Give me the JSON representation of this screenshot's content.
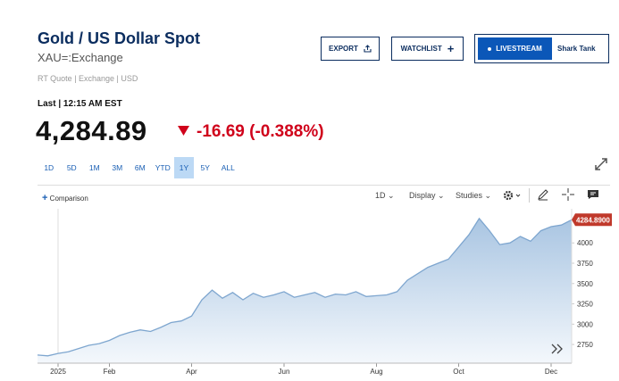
{
  "header": {
    "title": "Gold / US Dollar Spot",
    "symbol": "XAU=:Exchange",
    "meta": "RT Quote | Exchange | USD"
  },
  "buttons": {
    "export": "EXPORT",
    "watchlist": "WATCHLIST",
    "livestream": "LIVESTREAM",
    "show": "Shark Tank"
  },
  "quote": {
    "last_label": "Last | 12:15 AM EST",
    "price": "4,284.89",
    "change": "-16.69 (-0.388%)"
  },
  "ranges": [
    "1D",
    "5D",
    "1M",
    "3M",
    "6M",
    "YTD",
    "1Y",
    "5Y",
    "ALL"
  ],
  "selected_range": "1Y",
  "toolbar": {
    "comparison": "Comparison",
    "interval": "1D",
    "display": "Display",
    "studies": "Studies"
  },
  "chart_data": {
    "type": "area",
    "categories": [
      null,
      null,
      "2025",
      null,
      null,
      null,
      null,
      "Feb",
      null,
      null,
      null,
      null,
      null,
      null,
      null,
      "Apr",
      null,
      null,
      null,
      null,
      null,
      null,
      null,
      null,
      "Jun",
      null,
      null,
      null,
      null,
      null,
      null,
      null,
      null,
      "Aug",
      null,
      null,
      null,
      null,
      null,
      null,
      null,
      "Oct",
      null,
      null,
      null,
      null,
      null,
      null,
      null,
      null,
      "Dec",
      null,
      null
    ],
    "series": [
      {
        "name": "Gold / US Dollar Spot",
        "color": "#7ea6cf",
        "values": [
          2620,
          2610,
          2640,
          2660,
          2700,
          2740,
          2760,
          2800,
          2860,
          2900,
          2930,
          2910,
          2960,
          3020,
          3040,
          3100,
          3300,
          3420,
          3320,
          3390,
          3300,
          3380,
          3330,
          3360,
          3400,
          3330,
          3360,
          3390,
          3330,
          3370,
          3360,
          3400,
          3340,
          3350,
          3360,
          3400,
          3540,
          3620,
          3700,
          3750,
          3800,
          3950,
          4100,
          4300,
          4150,
          3980,
          4000,
          4080,
          4020,
          4150,
          4200,
          4220,
          4284.89
        ]
      }
    ],
    "last_price_label": "4284.8900",
    "ylim": [
      2520,
      4420
    ],
    "yticks": [
      2750,
      3000,
      3250,
      3500,
      3750,
      4000
    ],
    "grid": false
  }
}
